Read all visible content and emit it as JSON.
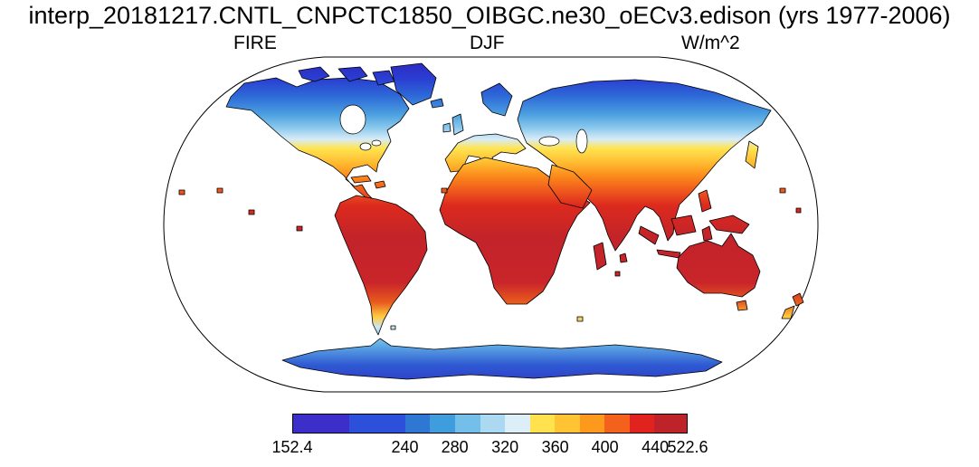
{
  "title": "interp_20181217.CNTL_CNPCTC1850_OIBGC.ne30_oECv3.edison (yrs 1977-2006)",
  "header": {
    "variable": "FIRE",
    "season": "DJF",
    "units": "W/m^2"
  },
  "colorbar": {
    "segments": [
      {
        "color": "#3B2EC9",
        "w": 2.25
      },
      {
        "color": "#2C50D9",
        "w": 2.25
      },
      {
        "color": "#2E77D3",
        "w": 1
      },
      {
        "color": "#3F9DDE",
        "w": 1
      },
      {
        "color": "#74BFEA",
        "w": 1
      },
      {
        "color": "#ABD9F2",
        "w": 1
      },
      {
        "color": "#DCEFF9",
        "w": 1
      },
      {
        "color": "#FFE24E",
        "w": 1
      },
      {
        "color": "#FFC334",
        "w": 1
      },
      {
        "color": "#FD9A1E",
        "w": 1
      },
      {
        "color": "#F4611C",
        "w": 1
      },
      {
        "color": "#E0231E",
        "w": 1
      },
      {
        "color": "#BD2328",
        "w": 1.3
      }
    ],
    "ticks": [
      {
        "label": "152.4",
        "pos": 0
      },
      {
        "label": "240",
        "pos": 28.5
      },
      {
        "label": "280",
        "pos": 41.1
      },
      {
        "label": "320",
        "pos": 53.8
      },
      {
        "label": "360",
        "pos": 66.5
      },
      {
        "label": "400",
        "pos": 79.1
      },
      {
        "label": "440",
        "pos": 91.8
      },
      {
        "label": "522.6",
        "pos": 100
      }
    ]
  },
  "chart_data": {
    "type": "heatmap",
    "title": "interp_20181217.CNTL_CNPCTC1850_OIBGC.ne30_oECv3.edison (yrs 1977-2006)",
    "variable": "FIRE",
    "season": "DJF",
    "units": "W/m^2",
    "projection": "robinson-world-map",
    "ocean_masked": true,
    "data_min": 152.4,
    "data_max": 522.6,
    "labeled_ticks": [
      152.4,
      240,
      280,
      320,
      360,
      400,
      440,
      522.6
    ],
    "contour_levels": [
      200,
      240,
      260,
      280,
      300,
      320,
      340,
      360,
      380,
      400,
      420,
      440
    ],
    "palette": [
      "#3B2EC9",
      "#2C50D9",
      "#2E77D3",
      "#3F9DDE",
      "#74BFEA",
      "#ABD9F2",
      "#DCEFF9",
      "#FFE24E",
      "#FFC334",
      "#FD9A1E",
      "#F4611C",
      "#E0231E",
      "#BD2328"
    ],
    "pattern_summary": "Land-only shaded field: lowest values (blue, ~152-260) over the Arctic, northern Canada, Greenland, Siberia and Antarctica; pale-blue to yellow transition (~300-360) across the mid-latitude USA, Europe and central Asia; orange (~360-420) over the Sahara, Mexico and Arabia; highest values (red/dark red, ~440-522) over tropical South America, central Africa, India, Southeast Asia, the Maritime Continent and Australia; Patagonia and southern-ocean islands dip back to yellow/pale blue."
  }
}
